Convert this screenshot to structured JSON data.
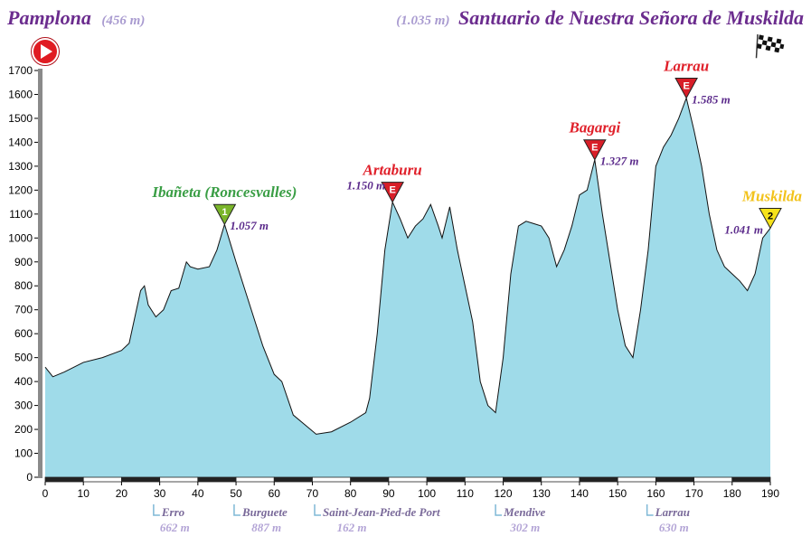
{
  "chart_data": {
    "type": "area",
    "start": {
      "name": "Pamplona",
      "elevation": "(456 m)"
    },
    "finish": {
      "name": "Santuario de Nuestra Señora de Muskilda",
      "elevation": "(1.035 m)"
    },
    "color": "#9fdbe9",
    "line_color": "#111111",
    "x": [
      0,
      2,
      5,
      10,
      15,
      20,
      22,
      25,
      26,
      27,
      29,
      31,
      33,
      35,
      37,
      38,
      40,
      43,
      45,
      47,
      50,
      53,
      57,
      60,
      62,
      65,
      68,
      71,
      75,
      80,
      84,
      85,
      87,
      89,
      91,
      93,
      95,
      97,
      99,
      101,
      103,
      104,
      106,
      108,
      110,
      112,
      114,
      116,
      118,
      120,
      122,
      124,
      126,
      128,
      130,
      132,
      134,
      136,
      138,
      140,
      142,
      144,
      146,
      148,
      150,
      152,
      154,
      156,
      158,
      160,
      162,
      164,
      166,
      168,
      170,
      172,
      174,
      176,
      178,
      180,
      182,
      184,
      186,
      188,
      190
    ],
    "values": [
      460,
      420,
      440,
      480,
      500,
      530,
      560,
      780,
      800,
      720,
      670,
      700,
      780,
      790,
      900,
      880,
      870,
      880,
      950,
      1057,
      900,
      750,
      550,
      430,
      400,
      260,
      220,
      180,
      190,
      230,
      270,
      330,
      600,
      950,
      1150,
      1080,
      1000,
      1050,
      1080,
      1140,
      1050,
      1000,
      1130,
      950,
      800,
      650,
      400,
      300,
      270,
      500,
      850,
      1050,
      1070,
      1060,
      1050,
      1000,
      880,
      950,
      1050,
      1180,
      1200,
      1327,
      1100,
      900,
      700,
      550,
      500,
      700,
      950,
      1300,
      1380,
      1430,
      1500,
      1585,
      1450,
      1300,
      1100,
      950,
      880,
      850,
      820,
      780,
      850,
      1000,
      1041
    ],
    "xlim": [
      0,
      190
    ],
    "ylim": [
      0,
      1700
    ],
    "xticks": [
      0,
      10,
      20,
      30,
      40,
      50,
      60,
      70,
      80,
      90,
      100,
      110,
      120,
      130,
      140,
      150,
      160,
      170,
      180,
      190
    ],
    "yticks": [
      0,
      100,
      200,
      300,
      400,
      500,
      600,
      700,
      800,
      900,
      1000,
      1100,
      1200,
      1300,
      1400,
      1500,
      1600,
      1700
    ],
    "peaks": [
      {
        "name": "Ibañeta (Roncesvalles)",
        "category": "1",
        "x": 47,
        "elevation": 1057,
        "elevation_label": "1.057 m",
        "color": "#3a9e45",
        "marker_color": "#7ab52a"
      },
      {
        "name": "Artaburu",
        "category": "E",
        "x": 91,
        "elevation": 1150,
        "elevation_label": "1.150 m",
        "color": "#e0202a",
        "marker_color": "#d81e28"
      },
      {
        "name": "Bagargi",
        "category": "E",
        "x": 144,
        "elevation": 1327,
        "elevation_label": "1.327 m",
        "color": "#e0202a",
        "marker_color": "#d81e28"
      },
      {
        "name": "Larrau",
        "category": "E",
        "x": 168,
        "elevation": 1585,
        "elevation_label": "1.585 m",
        "color": "#e0202a",
        "marker_color": "#d81e28"
      },
      {
        "name": "Muskilda",
        "category": "2",
        "x": 190,
        "elevation": 1041,
        "elevation_label": "1.041 m",
        "color": "#f2c21a",
        "marker_color": "#f6e21a"
      }
    ],
    "towns": [
      {
        "name": "Erro",
        "x": 28.4,
        "elevation": "662 m"
      },
      {
        "name": "Burguete",
        "x": 49.5,
        "elevation": "887 m"
      },
      {
        "name": "Saint-Jean-Pied-de Port",
        "x": 70.6,
        "elevation": "162 m"
      },
      {
        "name": "Mendive",
        "x": 118,
        "elevation": "302 m"
      },
      {
        "name": "Larrau",
        "x": 157.7,
        "elevation": "630 m"
      }
    ]
  }
}
